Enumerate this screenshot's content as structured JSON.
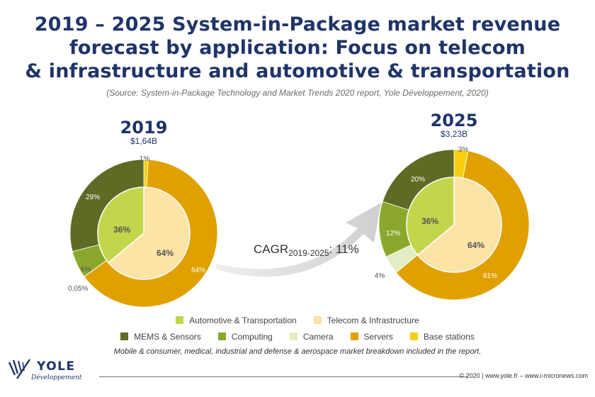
{
  "title": {
    "line1": "2019 – 2025 System-in-Package market revenue",
    "line2": "forecast by application: Focus on telecom",
    "line3": "& infrastructure and automotive & transportation"
  },
  "source": "(Source: System-in-Package Technology and Market Trends 2020 report, Yole Développement, 2020)",
  "cagr": {
    "prefix": "CAGR",
    "sub": "2019-2025",
    "suffix": ": 11%"
  },
  "legend": {
    "row1": [
      {
        "label": "Automotive & Transportation",
        "color": "#c3d54a"
      },
      {
        "label": "Telecom & Infrastructure",
        "color": "#fce3a6"
      }
    ],
    "row2": [
      {
        "label": "MEMS & Sensors",
        "color": "#5e6b25"
      },
      {
        "label": "Computing",
        "color": "#8aa82b"
      },
      {
        "label": "Camera",
        "color": "#e3edc4"
      },
      {
        "label": "Servers",
        "color": "#e0a100"
      },
      {
        "label": "Base stations",
        "color": "#f6cf10"
      }
    ]
  },
  "footnote": "Mobile & consumer, medical, industrial and defense & aerospace market breakdown included in the report.",
  "footer": {
    "logo_word": "YOLE",
    "logo_sub": "Développement",
    "copyright": "© 2020 | www.yole.fr – www.i-micronews.com"
  },
  "chart_data": [
    {
      "type": "pie",
      "year": "2019",
      "total": "$1,64B",
      "inner": [
        {
          "name": "Telecom & Infrastructure",
          "value": 64,
          "label": "64%",
          "color": "#fce3a6"
        },
        {
          "name": "Automotive & Transportation",
          "value": 36,
          "label": "36%",
          "color": "#c3d54a"
        }
      ],
      "outer": [
        {
          "name": "Base stations",
          "value": 1,
          "label": "1%",
          "color": "#f6cf10"
        },
        {
          "name": "Servers",
          "value": 64,
          "label": "64%",
          "color": "#e0a100"
        },
        {
          "name": "Camera",
          "value": 0.05,
          "label": "0,05%",
          "color": "#e3edc4"
        },
        {
          "name": "Computing",
          "value": 6,
          "label": "6%",
          "color": "#8aa82b"
        },
        {
          "name": "MEMS & Sensors",
          "value": 29,
          "label": "29%",
          "color": "#5e6b25"
        }
      ]
    },
    {
      "type": "pie",
      "year": "2025",
      "total": "$3,23B",
      "inner": [
        {
          "name": "Telecom & Infrastructure",
          "value": 64,
          "label": "64%",
          "color": "#fce3a6"
        },
        {
          "name": "Automotive & Transportation",
          "value": 36,
          "label": "36%",
          "color": "#c3d54a"
        }
      ],
      "outer": [
        {
          "name": "Base stations",
          "value": 3,
          "label": "3%",
          "color": "#f6cf10"
        },
        {
          "name": "Servers",
          "value": 61,
          "label": "61%",
          "color": "#e0a100"
        },
        {
          "name": "Camera",
          "value": 4,
          "label": "4%",
          "color": "#e3edc4"
        },
        {
          "name": "Computing",
          "value": 12,
          "label": "12%",
          "color": "#8aa82b"
        },
        {
          "name": "MEMS & Sensors",
          "value": 20,
          "label": "20%",
          "color": "#5e6b25"
        }
      ]
    }
  ]
}
